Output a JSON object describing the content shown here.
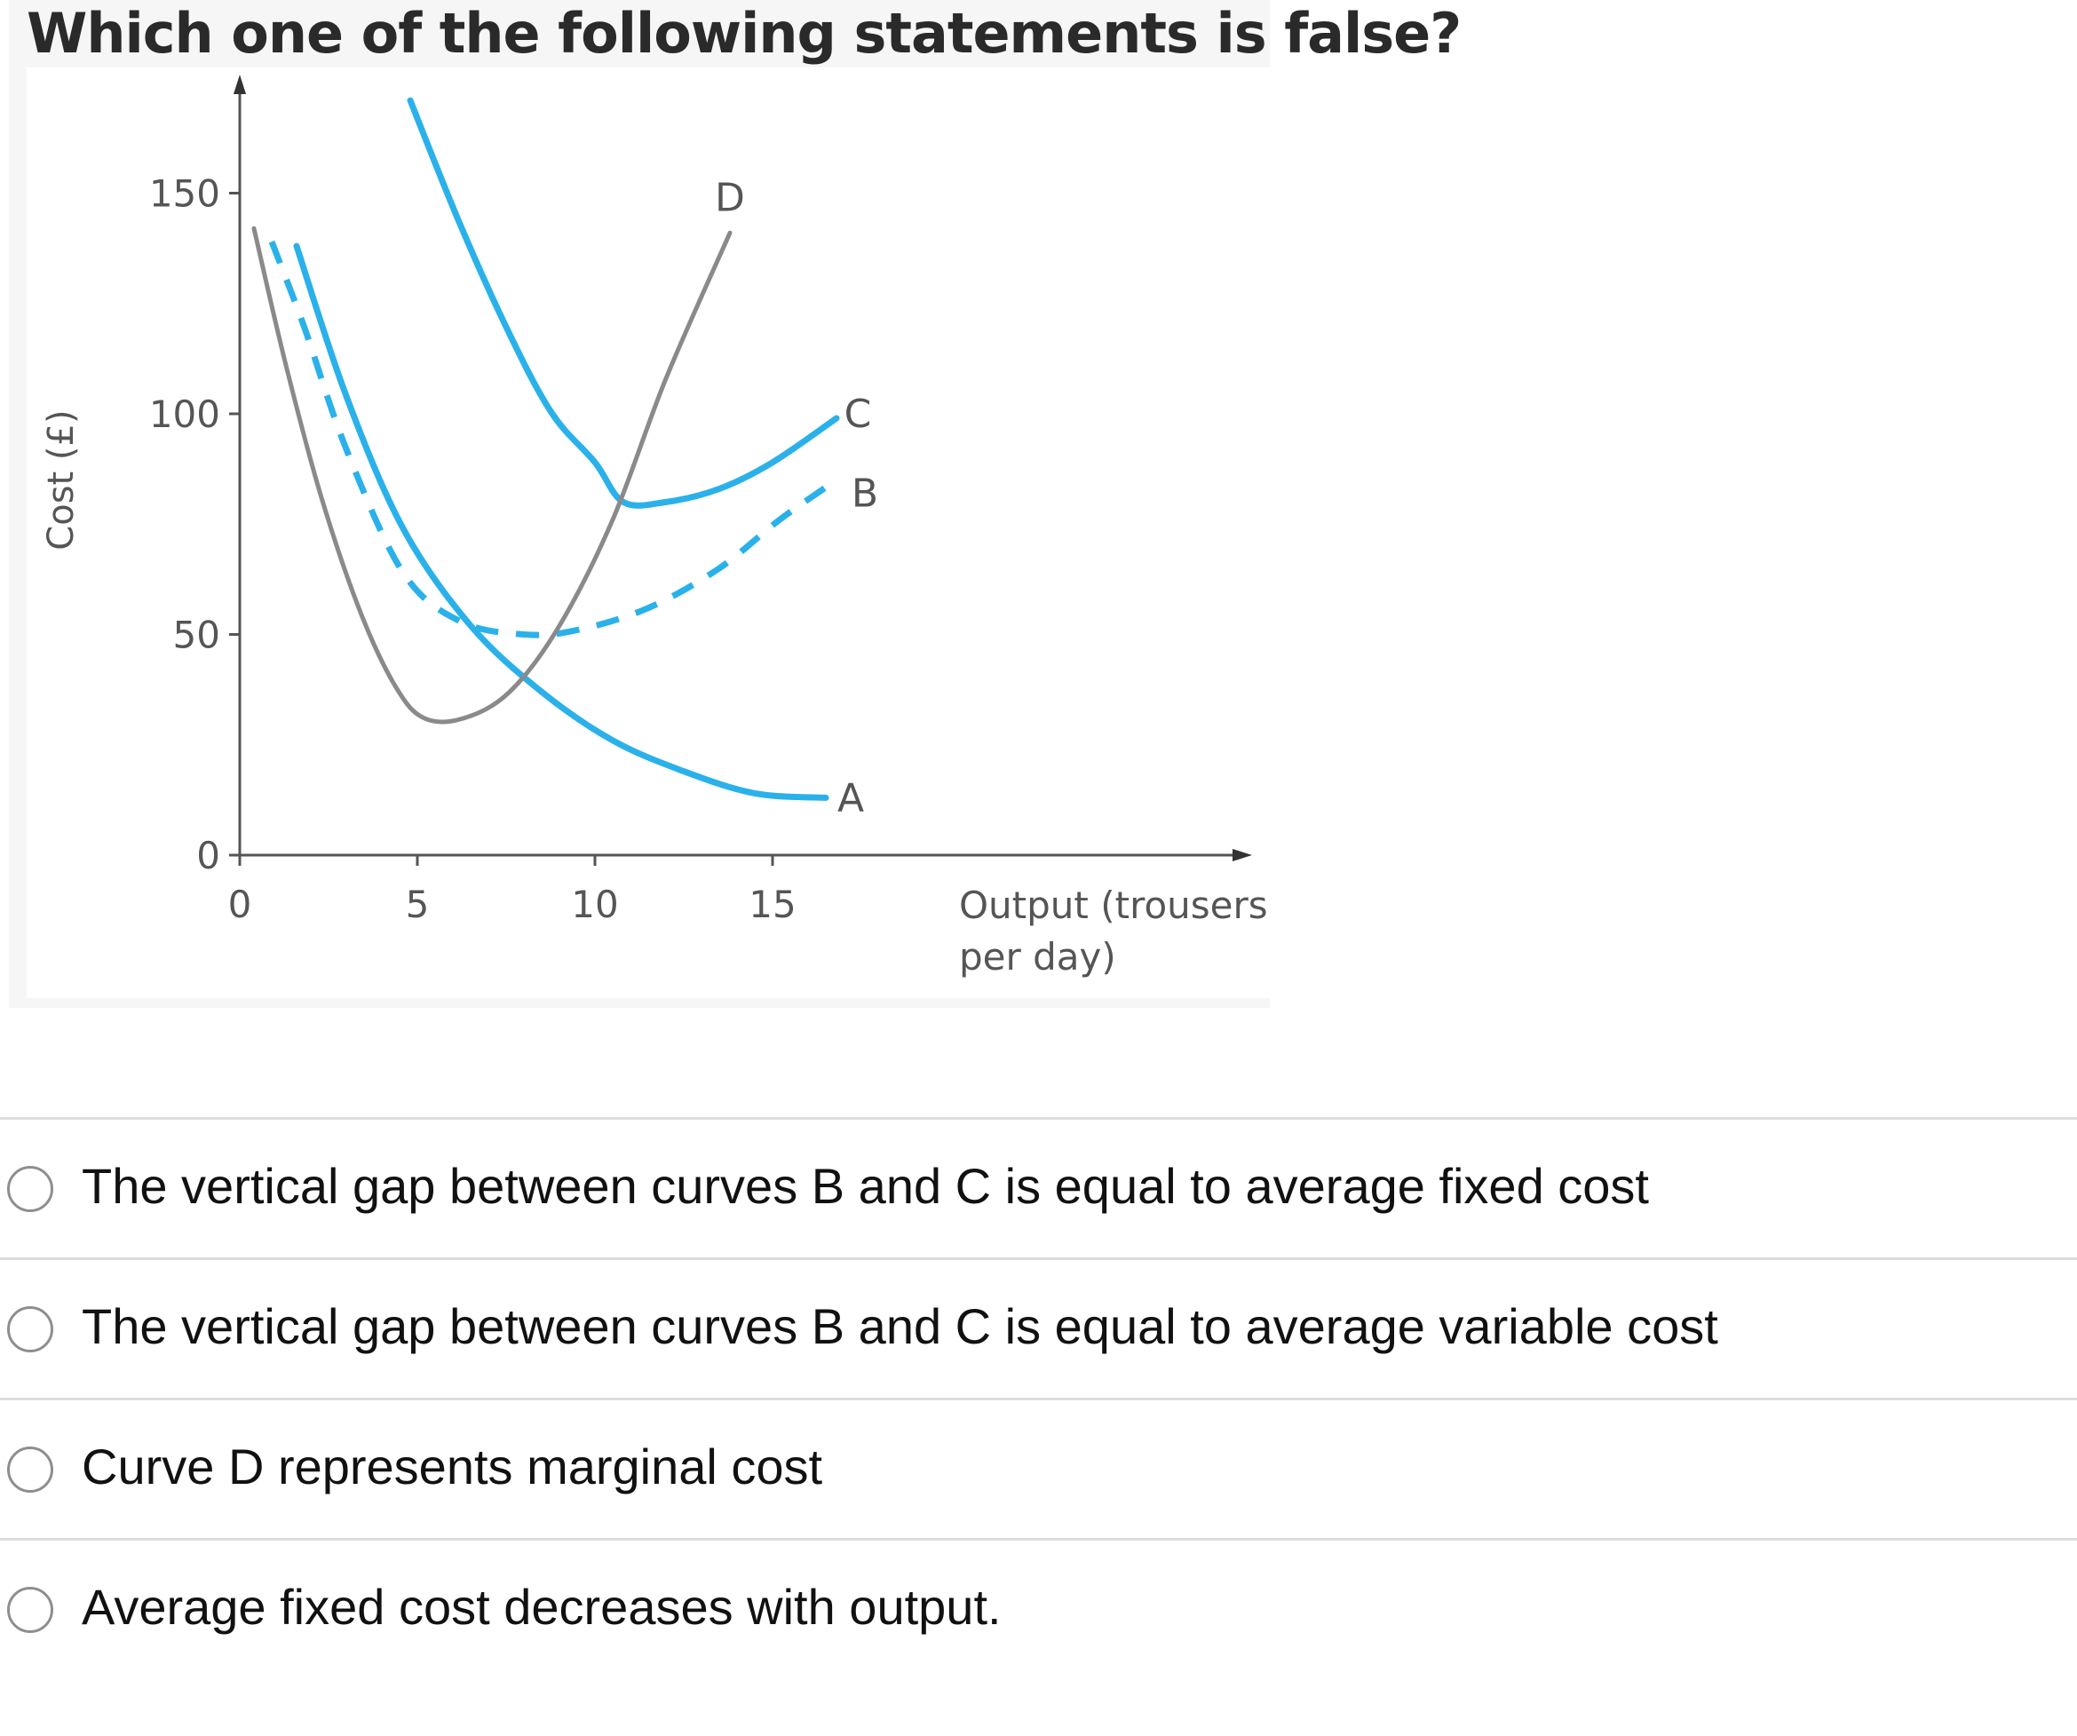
{
  "question": {
    "title": "Which one of the following statements is false?"
  },
  "chart_data": {
    "type": "line",
    "title": "",
    "xlabel": "Output (trousers per day)",
    "xlabel_lines": [
      "Output (trousers",
      "per day)"
    ],
    "ylabel": "Cost (£)",
    "xlim": [
      0,
      28
    ],
    "ylim": [
      0,
      175
    ],
    "x_ticks": [
      0,
      5,
      10,
      15
    ],
    "y_ticks": [
      0,
      50,
      100,
      150
    ],
    "grid": false,
    "series": [
      {
        "name": "A",
        "color": "#2ab1ea",
        "dash": false,
        "points": [
          [
            1.6,
            138
          ],
          [
            3,
            104
          ],
          [
            4.6,
            74
          ],
          [
            6.5,
            52
          ],
          [
            8.5,
            37
          ],
          [
            10.5,
            26
          ],
          [
            12.5,
            19
          ],
          [
            14.5,
            14
          ],
          [
            16.5,
            13
          ]
        ]
      },
      {
        "name": "B",
        "color": "#2ab1ea",
        "dash": true,
        "points": [
          [
            0.9,
            139
          ],
          [
            1.8,
            120
          ],
          [
            3,
            92
          ],
          [
            4.6,
            64
          ],
          [
            6.2,
            53
          ],
          [
            8,
            50
          ],
          [
            9.5,
            51
          ],
          [
            11.5,
            56
          ],
          [
            13.5,
            65
          ],
          [
            15.2,
            76
          ],
          [
            16.8,
            85
          ]
        ]
      },
      {
        "name": "C",
        "color": "#2ab1ea",
        "dash": false,
        "points": [
          [
            4.8,
            171
          ],
          [
            6.2,
            143
          ],
          [
            7.6,
            118
          ],
          [
            8.8,
            100
          ],
          [
            10,
            89
          ],
          [
            10.8,
            80
          ],
          [
            12,
            80
          ],
          [
            13.5,
            83
          ],
          [
            15,
            89
          ],
          [
            16.8,
            99
          ]
        ]
      },
      {
        "name": "D",
        "color": "#8a8a8a",
        "dash": false,
        "points": [
          [
            0.4,
            142
          ],
          [
            1.3,
            111
          ],
          [
            2.3,
            81
          ],
          [
            3.4,
            55
          ],
          [
            4.4,
            38
          ],
          [
            5.2,
            31
          ],
          [
            6.3,
            31
          ],
          [
            7.6,
            37
          ],
          [
            9,
            52
          ],
          [
            10.5,
            76
          ],
          [
            12,
            108
          ],
          [
            13.8,
            141
          ]
        ]
      }
    ],
    "curve_labels": [
      {
        "text": "D",
        "x": 13.8,
        "y": 149
      },
      {
        "text": "C",
        "x": 17.4,
        "y": 100
      },
      {
        "text": "B",
        "x": 17.6,
        "y": 82
      },
      {
        "text": "A",
        "x": 17.2,
        "y": 13
      }
    ]
  },
  "options": [
    {
      "label": "The vertical gap between curves B and C is equal to average fixed cost"
    },
    {
      "label": "The vertical gap between curves B and C is equal to average variable cost"
    },
    {
      "label": "Curve D represents marginal cost"
    },
    {
      "label": "Average fixed cost decreases with output."
    }
  ]
}
